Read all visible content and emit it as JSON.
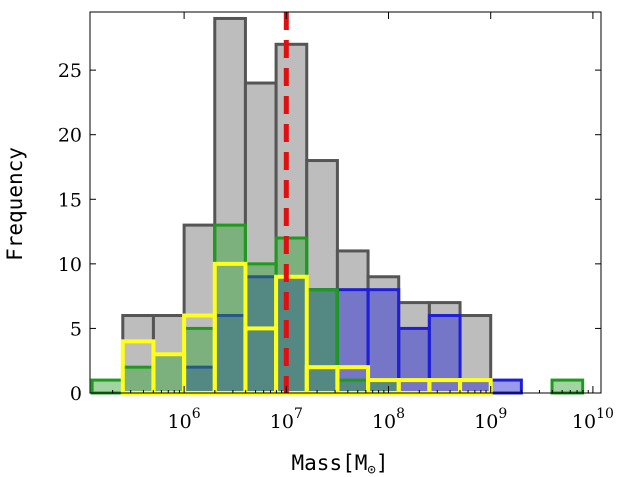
{
  "chart_data": {
    "type": "histogram",
    "title": "",
    "xlabel": "Mass[M",
    "xlabel_sub": "⊙",
    "xlabel_close": "]",
    "ylabel": "Frequency",
    "xscale": "log",
    "xlim": [
      120000.0,
      12000000000.0
    ],
    "ylim": [
      0,
      29.5
    ],
    "yticks": [
      0,
      5,
      10,
      15,
      20,
      25
    ],
    "xticks": [
      {
        "value": 1000000.0,
        "base": "10",
        "exp": "6"
      },
      {
        "value": 10000000.0,
        "base": "10",
        "exp": "7"
      },
      {
        "value": 100000000.0,
        "base": "10",
        "exp": "8"
      },
      {
        "value": 1000000000.0,
        "base": "10",
        "exp": "9"
      },
      {
        "value": 10000000000.0,
        "base": "10",
        "exp": "10"
      }
    ],
    "bin_edges_log10": [
      5.1,
      5.4,
      5.7,
      6.0,
      6.3,
      6.6,
      6.9,
      7.2,
      7.5,
      7.8,
      8.1,
      8.4,
      8.7,
      9.0,
      9.3,
      9.6,
      9.9
    ],
    "series": [
      {
        "values": [
          0,
          6,
          6,
          13,
          29,
          24,
          27,
          18,
          11,
          9,
          7,
          7,
          6,
          0,
          0,
          0
        ],
        "fill": "#bdbdbd",
        "stroke": "#555555",
        "fill_opacity": 1,
        "stroke_width": 3
      },
      {
        "values": [
          0,
          0,
          0,
          2,
          6,
          9,
          9,
          8,
          8,
          8,
          5,
          6,
          1,
          1,
          0,
          0
        ],
        "fill": "#1f1fd8",
        "stroke": "#1f1fd8",
        "fill_opacity": 0.45,
        "stroke_width": 3
      },
      {
        "values": [
          1,
          2,
          3,
          5,
          13,
          10,
          12,
          8,
          1,
          1,
          0,
          0,
          0,
          0,
          0,
          1
        ],
        "fill": "#2ca02c",
        "stroke": "#1f9a1f",
        "fill_opacity": 0.45,
        "stroke_width": 3
      },
      {
        "values": [
          0,
          4,
          3,
          6,
          10,
          5,
          9,
          2,
          2,
          1,
          1,
          1,
          1,
          0,
          0,
          0
        ],
        "fill": "none",
        "stroke": "#ffff1a",
        "fill_opacity": 0,
        "stroke_width": 4
      }
    ],
    "vline": {
      "x": 10000000.0,
      "color": "#e01010",
      "style": "dashed"
    }
  }
}
